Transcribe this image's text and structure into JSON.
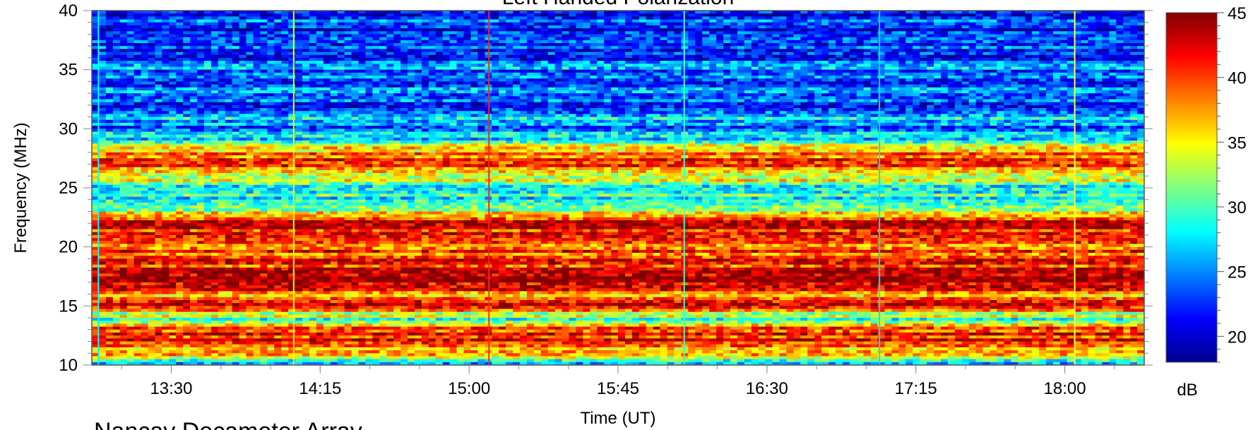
{
  "chart_data": {
    "type": "heatmap",
    "title": "Left Handed Polarization",
    "footer": "Nancay Decameter Array",
    "xlabel": "Time (UT)",
    "ylabel": "Frequency (MHz)",
    "xlim": [
      "13:06",
      "18:24"
    ],
    "ylim": [
      10,
      40
    ],
    "x_ticks": [
      "13:30",
      "14:15",
      "15:00",
      "15:45",
      "16:30",
      "17:15",
      "18:00"
    ],
    "y_ticks": [
      10,
      15,
      20,
      25,
      30,
      35,
      40
    ],
    "colorbar": {
      "label": "dB",
      "range": [
        18,
        45
      ],
      "ticks": [
        20,
        25,
        30,
        35,
        40,
        45
      ],
      "colors": [
        "#00008f",
        "#0000ff",
        "#0080ff",
        "#00ffff",
        "#80ff80",
        "#ffff00",
        "#ff8000",
        "#ff0000",
        "#800000"
      ]
    },
    "intensity_profile_by_frequency": {
      "frequency_mhz": [
        10,
        11,
        12,
        13,
        14,
        15,
        16,
        17,
        18,
        19,
        20,
        21,
        22,
        23,
        24,
        25,
        26,
        27,
        28,
        29,
        30,
        31,
        32,
        33,
        34,
        35,
        36,
        37,
        38,
        39,
        40
      ],
      "typical_db": [
        21,
        38,
        41,
        40,
        30,
        42,
        37,
        44,
        43,
        40,
        38,
        42,
        43,
        33,
        30,
        30,
        34,
        41,
        39,
        28,
        24,
        26,
        23,
        24,
        23,
        25,
        22,
        23,
        21,
        22,
        21
      ]
    },
    "vertical_marker_times": [
      "13:08",
      "14:07",
      "15:06",
      "16:05",
      "17:04",
      "18:03"
    ]
  }
}
